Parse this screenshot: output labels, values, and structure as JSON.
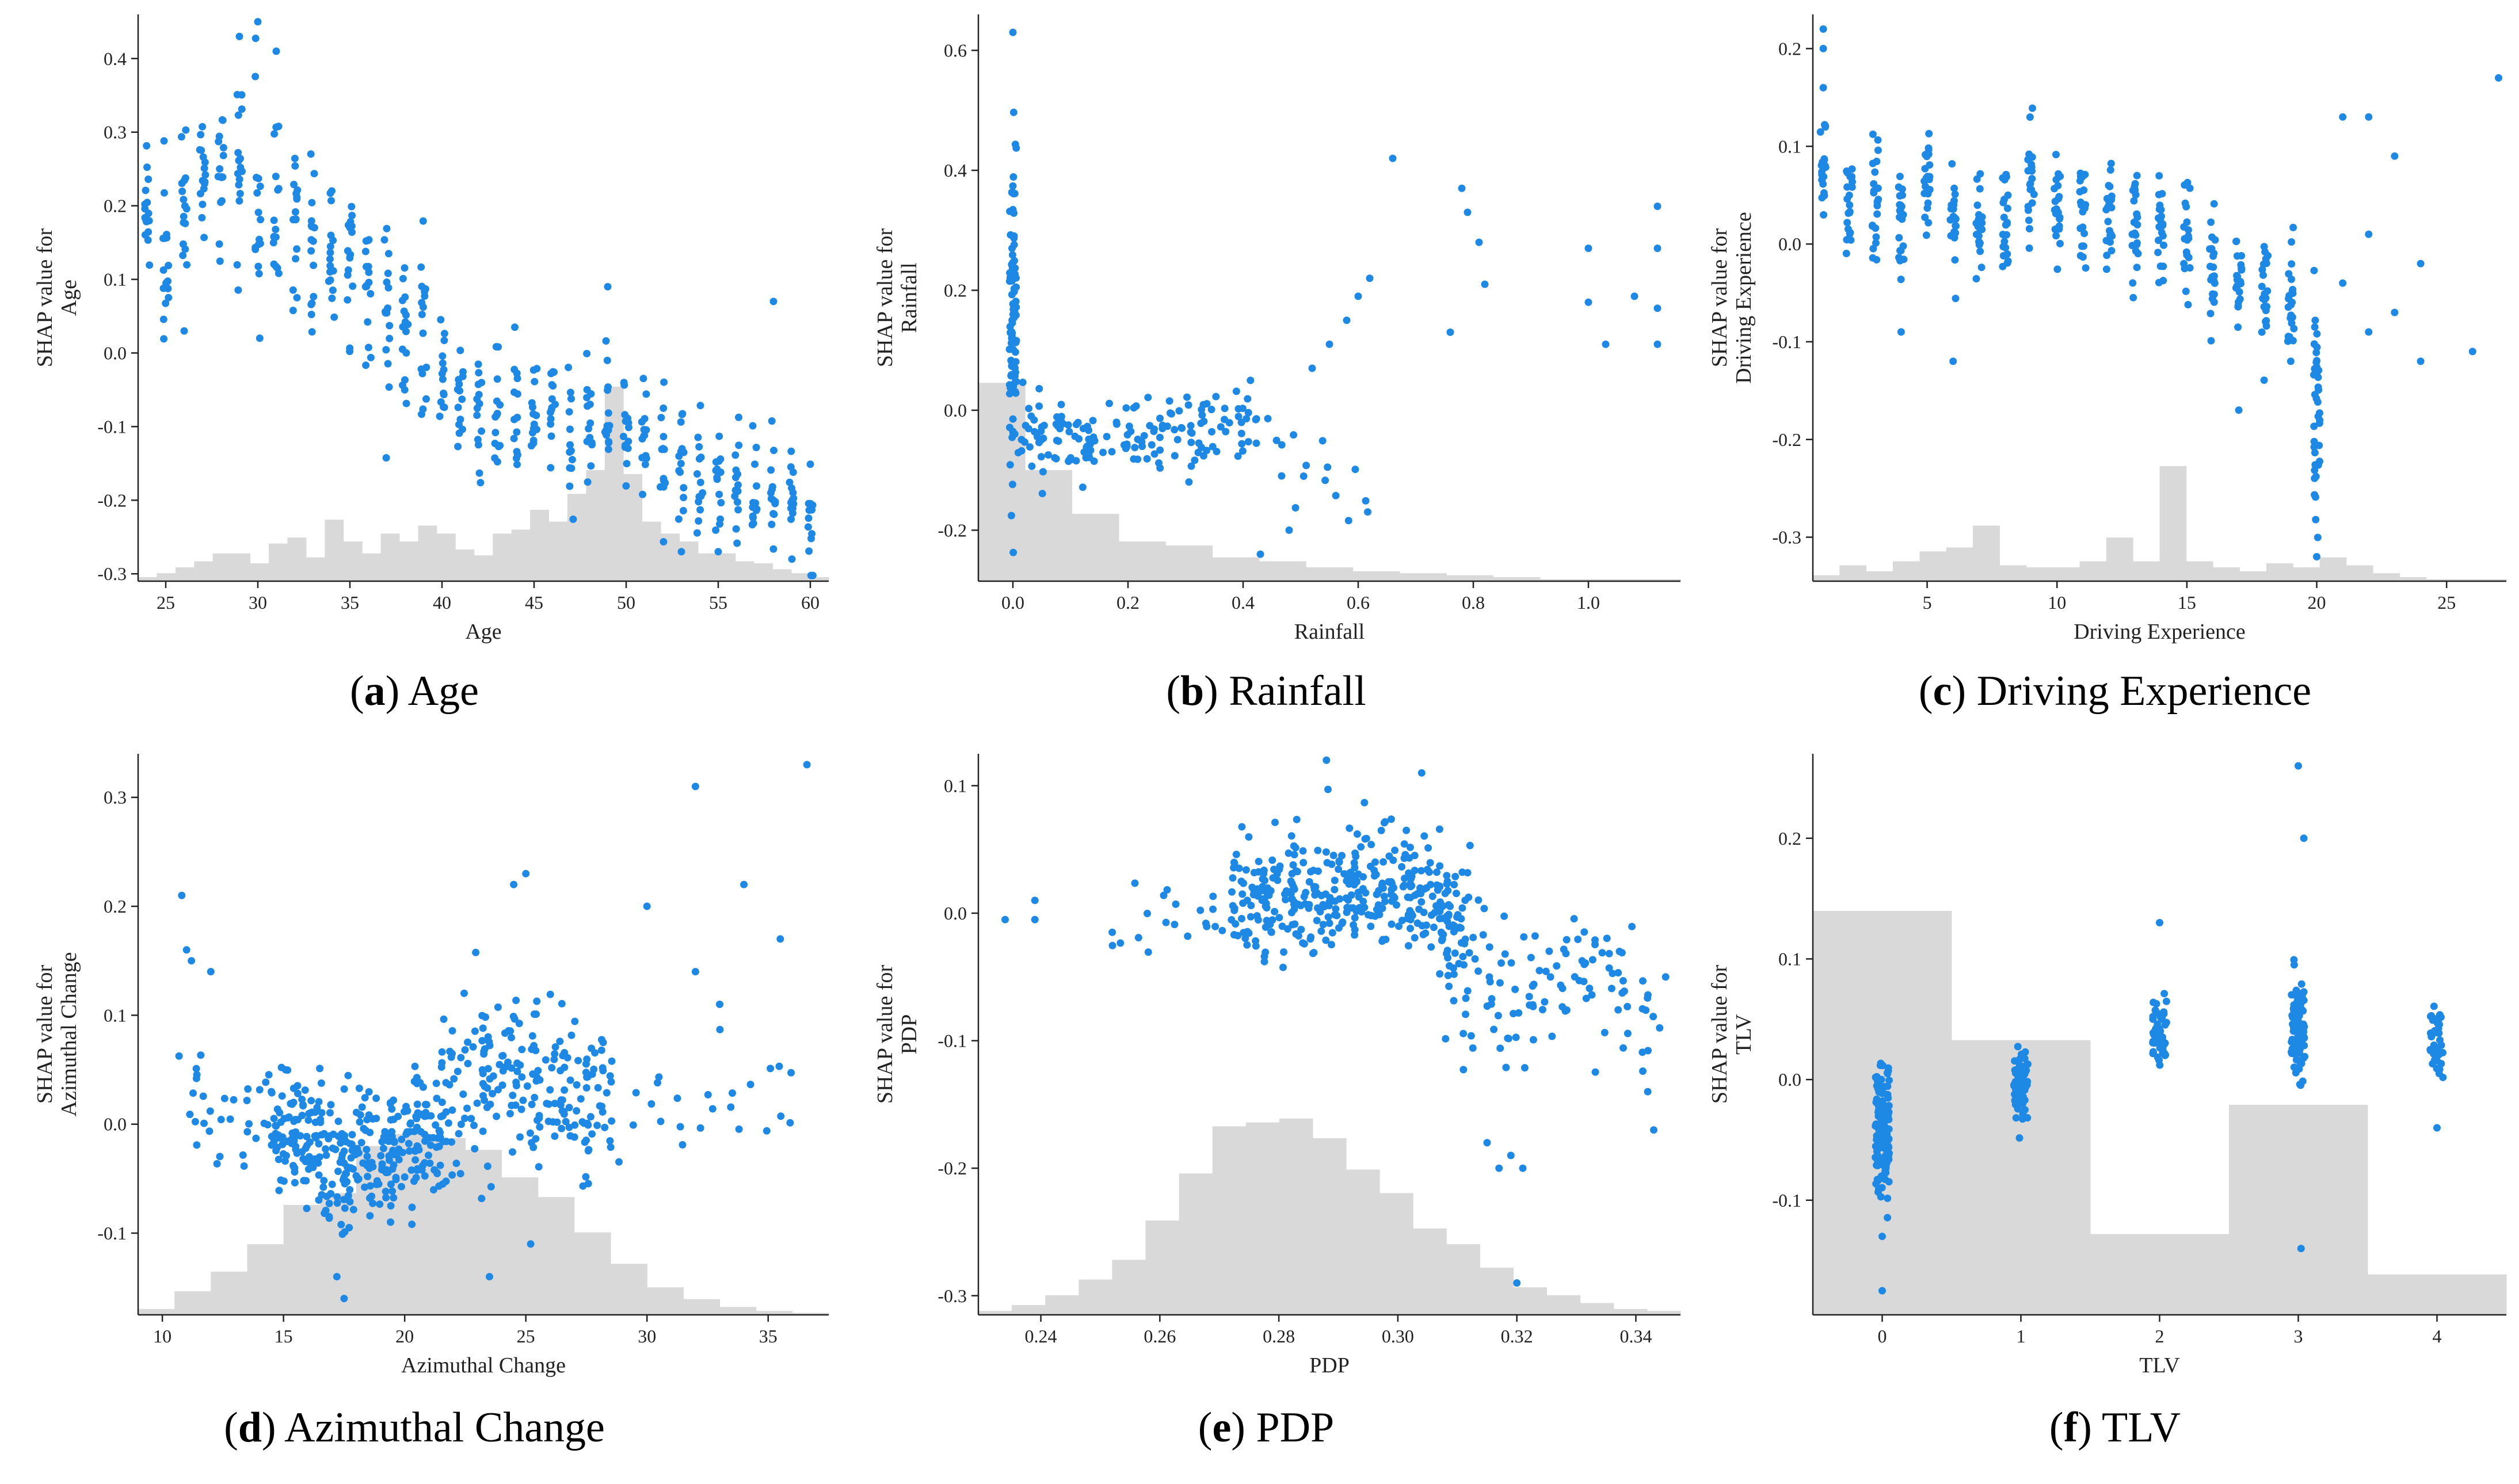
{
  "colors": {
    "points": "#1e88e5",
    "histogram": "#d9d9d9",
    "axis": "#222222"
  },
  "chart_data": [
    {
      "type": "scatter",
      "id": "a",
      "caption": {
        "letter": "a",
        "text": "Age"
      },
      "xlabel": "Age",
      "ylabel": [
        "SHAP value for",
        "Age"
      ],
      "xlim": [
        23.5,
        61
      ],
      "ylim": [
        -0.31,
        0.46
      ],
      "xticks": [
        25,
        30,
        35,
        40,
        45,
        50,
        55,
        60
      ],
      "yticks": [
        -0.3,
        -0.2,
        -0.1,
        0.0,
        0.1,
        0.2,
        0.3,
        0.4
      ],
      "xtick_labels": [
        "25",
        "30",
        "35",
        "40",
        "45",
        "50",
        "55",
        "60"
      ],
      "ytick_labels": [
        "-0.3",
        "-0.2",
        "-0.1",
        "0.0",
        "0.1",
        "0.2",
        "0.3",
        "0.4"
      ],
      "histogram_rel": [
        0.02,
        0.04,
        0.07,
        0.1,
        0.14,
        0.14,
        0.09,
        0.19,
        0.22,
        0.12,
        0.31,
        0.2,
        0.14,
        0.24,
        0.2,
        0.28,
        0.24,
        0.16,
        0.13,
        0.24,
        0.26,
        0.36,
        0.3,
        0.44,
        0.56,
        0.98,
        0.54,
        0.3,
        0.24,
        0.2,
        0.14,
        0.14,
        0.1,
        0.09,
        0.06,
        0.04,
        0.02
      ],
      "point_groups": [
        {
          "x": [
            24,
            25,
            26,
            27,
            28,
            29,
            30,
            31,
            32,
            33,
            34
          ],
          "center": [
            0.19,
            0.17,
            0.2,
            0.22,
            0.23,
            0.25,
            0.23,
            0.2,
            0.17,
            0.14,
            0.12
          ],
          "spread": 0.1,
          "count": 16,
          "jitter": 0.15
        },
        {
          "x": [
            35,
            36,
            37,
            38,
            39
          ],
          "center": [
            0.13,
            0.11,
            0.06,
            0.03,
            0.04
          ],
          "spread": 0.1,
          "count": 16,
          "jitter": 0.15
        },
        {
          "x": [
            40,
            41,
            42,
            43,
            44,
            45,
            46,
            47,
            48,
            49,
            50,
            51,
            52,
            53,
            54,
            55,
            56,
            57,
            58,
            59,
            60
          ],
          "center": [
            -0.03,
            -0.06,
            -0.08,
            -0.08,
            -0.09,
            -0.1,
            -0.08,
            -0.11,
            -0.09,
            -0.08,
            -0.1,
            -0.1,
            -0.14,
            -0.15,
            -0.16,
            -0.17,
            -0.19,
            -0.2,
            -0.2,
            -0.22,
            -0.24
          ],
          "spread": 0.07,
          "count": 14,
          "jitter": 0.15
        }
      ],
      "extra_points": [
        [
          30,
          0.45
        ],
        [
          29,
          0.43
        ],
        [
          31,
          0.41
        ],
        [
          26,
          0.03
        ],
        [
          58,
          0.07
        ],
        [
          49,
          0.09
        ],
        [
          55,
          -0.27
        ],
        [
          53,
          -0.27
        ],
        [
          59,
          -0.28
        ]
      ]
    },
    {
      "type": "scatter",
      "id": "b",
      "caption": {
        "letter": "b",
        "text": "Rainfall"
      },
      "xlabel": "Rainfall",
      "ylabel": [
        "SHAP value for",
        "Rainfall"
      ],
      "xlim": [
        -0.06,
        1.16
      ],
      "ylim": [
        -0.285,
        0.66
      ],
      "xticks": [
        0.0,
        0.2,
        0.4,
        0.6,
        0.8,
        1.0
      ],
      "yticks": [
        -0.2,
        0.0,
        0.2,
        0.4,
        0.6
      ],
      "xtick_labels": [
        "0.0",
        "0.2",
        "0.4",
        "0.6",
        "0.8",
        "1.0"
      ],
      "ytick_labels": [
        "-0.2",
        "0.0",
        "0.2",
        "0.4",
        "0.6"
      ],
      "histogram_rel": [
        1.0,
        0.56,
        0.34,
        0.2,
        0.18,
        0.12,
        0.1,
        0.07,
        0.05,
        0.04,
        0.03,
        0.02,
        0.01,
        0.01,
        0.01
      ],
      "point_groups": [
        {
          "x": [
            0.0
          ],
          "center": [
            0.16
          ],
          "spread": 0.22,
          "count": 90,
          "jitter": 0.006
        },
        {
          "x": [
            0.03,
            0.06,
            0.1,
            0.15,
            0.2,
            0.25,
            0.3,
            0.35,
            0.4
          ],
          "center": [
            -0.03,
            -0.04,
            -0.06,
            -0.05,
            -0.05,
            -0.04,
            -0.04,
            -0.03,
            -0.03
          ],
          "spread": 0.06,
          "count": 18,
          "jitter": 0.025
        },
        {
          "x": [
            0.45,
            0.5,
            0.55,
            0.6
          ],
          "center": [
            -0.05,
            -0.1,
            -0.12,
            -0.14
          ],
          "spread": 0.07,
          "count": 4,
          "jitter": 0.02
        }
      ],
      "extra_points": [
        [
          0.0,
          0.63
        ],
        [
          0.66,
          0.42
        ],
        [
          0.78,
          0.37
        ],
        [
          0.79,
          0.33
        ],
        [
          0.81,
          0.28
        ],
        [
          0.82,
          0.21
        ],
        [
          0.76,
          0.13
        ],
        [
          1.0,
          0.27
        ],
        [
          1.0,
          0.18
        ],
        [
          1.03,
          0.11
        ],
        [
          1.08,
          0.19
        ],
        [
          1.12,
          0.34
        ],
        [
          1.12,
          0.27
        ],
        [
          1.12,
          0.17
        ],
        [
          1.12,
          0.11
        ],
        [
          0.6,
          0.19
        ],
        [
          0.62,
          0.22
        ],
        [
          0.58,
          0.15
        ],
        [
          0.55,
          0.11
        ],
        [
          0.52,
          0.07
        ],
        [
          0.43,
          -0.24
        ],
        [
          0.48,
          -0.2
        ]
      ]
    },
    {
      "type": "scatter",
      "id": "c",
      "caption": {
        "letter": "c",
        "text": "Driving Experience"
      },
      "xlabel": "Driving Experience",
      "ylabel": [
        "SHAP value for",
        "Driving Experience"
      ],
      "xlim": [
        0.6,
        27.3
      ],
      "ylim": [
        -0.345,
        0.235
      ],
      "xticks": [
        5,
        10,
        15,
        20,
        25
      ],
      "yticks": [
        -0.3,
        -0.2,
        -0.1,
        0.0,
        0.1,
        0.2
      ],
      "xtick_labels": [
        "5",
        "10",
        "15",
        "20",
        "25"
      ],
      "ytick_labels": [
        "-0.3",
        "-0.2",
        "-0.1",
        "0.0",
        "0.1",
        "0.2"
      ],
      "histogram_rel": [
        0.03,
        0.08,
        0.05,
        0.1,
        0.15,
        0.17,
        0.28,
        0.08,
        0.07,
        0.07,
        0.1,
        0.22,
        0.1,
        0.58,
        0.1,
        0.07,
        0.05,
        0.09,
        0.07,
        0.12,
        0.08,
        0.04,
        0.02,
        0.01,
        0.01,
        0.01
      ],
      "point_groups": [
        {
          "x": [
            1,
            2,
            3,
            4,
            5,
            6,
            7,
            8,
            9,
            10,
            11,
            12,
            13,
            14,
            15,
            16,
            17,
            18,
            19
          ],
          "center": [
            0.08,
            0.05,
            0.04,
            0.03,
            0.06,
            0.03,
            0.02,
            0.02,
            0.06,
            0.04,
            0.03,
            0.02,
            0.02,
            0.01,
            0.02,
            -0.03,
            -0.04,
            -0.04,
            -0.05
          ],
          "spread": 0.05,
          "count": 22,
          "jitter": 0.12
        },
        {
          "x": [
            20
          ],
          "center": [
            -0.16
          ],
          "spread": 0.1,
          "count": 40,
          "jitter": 0.12
        }
      ],
      "extra_points": [
        [
          1,
          0.22
        ],
        [
          1,
          0.2
        ],
        [
          1,
          0.16
        ],
        [
          21,
          0.13
        ],
        [
          22,
          0.13
        ],
        [
          23,
          0.09
        ],
        [
          21,
          -0.04
        ],
        [
          22,
          0.01
        ],
        [
          22,
          -0.09
        ],
        [
          23,
          -0.07
        ],
        [
          24,
          -0.02
        ],
        [
          24,
          -0.12
        ],
        [
          26,
          -0.11
        ],
        [
          27,
          0.17
        ],
        [
          19,
          -0.12
        ],
        [
          17,
          -0.17
        ],
        [
          6,
          -0.12
        ],
        [
          4,
          -0.09
        ],
        [
          20,
          -0.32
        ]
      ]
    },
    {
      "type": "scatter",
      "id": "d",
      "caption": {
        "letter": "d",
        "text": "Azimuthal Change"
      },
      "xlabel": "Azimuthal Change",
      "ylabel": [
        "SHAP value for",
        "Azimuthal Change"
      ],
      "xlim": [
        9,
        37.5
      ],
      "ylim": [
        -0.175,
        0.34
      ],
      "xticks": [
        10,
        15,
        20,
        25,
        30,
        35
      ],
      "yticks": [
        -0.1,
        0.0,
        0.1,
        0.2,
        0.3
      ],
      "xtick_labels": [
        "10",
        "15",
        "20",
        "25",
        "30",
        "35"
      ],
      "ytick_labels": [
        "-0.1",
        "0.0",
        "0.1",
        "0.2",
        "0.3"
      ],
      "histogram_rel": [
        0.03,
        0.12,
        0.22,
        0.36,
        0.56,
        0.62,
        0.86,
        0.92,
        0.9,
        0.84,
        0.7,
        0.6,
        0.42,
        0.26,
        0.14,
        0.08,
        0.04,
        0.02,
        0.01
      ],
      "point_groups": [
        {
          "x": [
            11,
            12,
            13,
            14
          ],
          "center": [
            0.02,
            0.01,
            0.0,
            0.0
          ],
          "spread": 0.04,
          "count": 8,
          "jitter": 0.6
        },
        {
          "x": [
            15,
            16,
            17,
            18,
            19,
            20,
            21
          ],
          "center": [
            -0.01,
            -0.02,
            -0.03,
            -0.035,
            -0.03,
            -0.02,
            -0.01
          ],
          "spread": 0.05,
          "count": 48,
          "jitter": 0.6
        },
        {
          "x": [
            22,
            23,
            24,
            25,
            26,
            27,
            28
          ],
          "center": [
            0.02,
            0.04,
            0.05,
            0.05,
            0.04,
            0.03,
            0.02
          ],
          "spread": 0.06,
          "count": 30,
          "jitter": 0.6
        },
        {
          "x": [
            29,
            30,
            31,
            32,
            33,
            34,
            35,
            36
          ],
          "center": [
            0.02,
            0.01,
            0.02,
            0.02,
            0.03,
            0.03,
            0.03,
            0.04
          ],
          "spread": 0.04,
          "count": 3,
          "jitter": 0.6
        }
      ],
      "extra_points": [
        [
          10.8,
          0.21
        ],
        [
          11,
          0.16
        ],
        [
          11.2,
          0.15
        ],
        [
          12,
          0.14
        ],
        [
          32,
          0.31
        ],
        [
          34,
          0.22
        ],
        [
          36.6,
          0.33
        ],
        [
          35.5,
          0.17
        ],
        [
          30,
          0.2
        ],
        [
          32,
          0.14
        ],
        [
          33,
          0.11
        ],
        [
          25,
          0.23
        ],
        [
          24.5,
          0.22
        ],
        [
          23.5,
          -0.14
        ],
        [
          17.5,
          -0.16
        ],
        [
          17.2,
          -0.14
        ],
        [
          25.2,
          -0.11
        ]
      ]
    },
    {
      "type": "scatter",
      "id": "e",
      "caption": {
        "letter": "e",
        "text": "PDP"
      },
      "xlabel": "PDP",
      "ylabel": [
        "SHAP value for",
        "PDP"
      ],
      "xlim": [
        0.2295,
        0.3475
      ],
      "ylim": [
        -0.315,
        0.125
      ],
      "xticks": [
        0.24,
        0.26,
        0.28,
        0.3,
        0.32,
        0.34
      ],
      "yticks": [
        -0.3,
        -0.2,
        -0.1,
        0.0,
        0.1
      ],
      "xtick_labels": [
        "0.24",
        "0.26",
        "0.28",
        "0.30",
        "0.32",
        "0.34"
      ],
      "ytick_labels": [
        "-0.3",
        "-0.2",
        "-0.1",
        "0.0",
        "0.1"
      ],
      "histogram_rel": [
        0.02,
        0.05,
        0.1,
        0.18,
        0.28,
        0.48,
        0.72,
        0.96,
        0.98,
        1.0,
        0.9,
        0.74,
        0.62,
        0.44,
        0.36,
        0.24,
        0.14,
        0.1,
        0.06,
        0.03,
        0.02
      ],
      "point_groups": [
        {
          "x": [
            0.255,
            0.26,
            0.265,
            0.27
          ],
          "center": [
            -0.01,
            0.0,
            0.005,
            0.01
          ],
          "spread": 0.03,
          "count": 5,
          "jitter": 0.003
        },
        {
          "x": [
            0.275,
            0.28,
            0.285,
            0.29,
            0.295,
            0.3,
            0.305,
            0.31
          ],
          "center": [
            0.01,
            0.015,
            0.02,
            0.02,
            0.02,
            0.02,
            0.01,
            -0.01
          ],
          "spread": 0.04,
          "count": 48,
          "jitter": 0.003
        },
        {
          "x": [
            0.31,
            0.315,
            0.32,
            0.325,
            0.33,
            0.335,
            0.34
          ],
          "center": [
            -0.06,
            -0.07,
            -0.07,
            -0.06,
            -0.05,
            -0.06,
            -0.07
          ],
          "spread": 0.05,
          "count": 16,
          "jitter": 0.003
        }
      ],
      "extra_points": [
        [
          0.234,
          -0.005
        ],
        [
          0.239,
          0.01
        ],
        [
          0.239,
          -0.005
        ],
        [
          0.252,
          -0.015
        ],
        [
          0.32,
          -0.29
        ],
        [
          0.315,
          -0.18
        ],
        [
          0.317,
          -0.2
        ],
        [
          0.321,
          -0.2
        ],
        [
          0.319,
          -0.19
        ],
        [
          0.343,
          -0.17
        ],
        [
          0.342,
          -0.14
        ],
        [
          0.345,
          -0.05
        ],
        [
          0.344,
          -0.09
        ],
        [
          0.288,
          0.12
        ],
        [
          0.304,
          0.11
        ]
      ]
    },
    {
      "type": "scatter",
      "id": "f",
      "caption": {
        "letter": "f",
        "text": "TLV"
      },
      "xlabel": "TLV",
      "ylabel": [
        "SHAP value for",
        "TLV"
      ],
      "xlim": [
        -0.5,
        4.5
      ],
      "ylim": [
        -0.195,
        0.27
      ],
      "xticks": [
        0,
        1,
        2,
        3,
        4
      ],
      "yticks": [
        -0.1,
        0.0,
        0.1,
        0.2
      ],
      "xtick_labels": [
        "0",
        "1",
        "2",
        "3",
        "4"
      ],
      "ytick_labels": [
        "-0.1",
        "0.0",
        "0.1",
        "0.2"
      ],
      "histogram_rel": [
        1.0,
        0.68,
        0.2,
        0.52,
        0.1
      ],
      "point_groups": [
        {
          "x": [
            0
          ],
          "center": [
            -0.04
          ],
          "spread": 0.045,
          "count": 150,
          "jitter": 0.05
        },
        {
          "x": [
            1
          ],
          "center": [
            -0.005
          ],
          "spread": 0.02,
          "count": 85,
          "jitter": 0.05
        },
        {
          "x": [
            2
          ],
          "center": [
            0.04
          ],
          "spread": 0.025,
          "count": 55,
          "jitter": 0.05
        },
        {
          "x": [
            3
          ],
          "center": [
            0.04
          ],
          "spread": 0.035,
          "count": 100,
          "jitter": 0.05
        },
        {
          "x": [
            4
          ],
          "center": [
            0.035
          ],
          "spread": 0.025,
          "count": 40,
          "jitter": 0.05
        }
      ],
      "extra_points": [
        [
          3.0,
          0.26
        ],
        [
          3.04,
          0.2
        ],
        [
          3.02,
          -0.14
        ],
        [
          0.0,
          -0.175
        ],
        [
          0.0,
          -0.13
        ],
        [
          2.0,
          0.13
        ],
        [
          4.0,
          -0.04
        ]
      ]
    }
  ]
}
